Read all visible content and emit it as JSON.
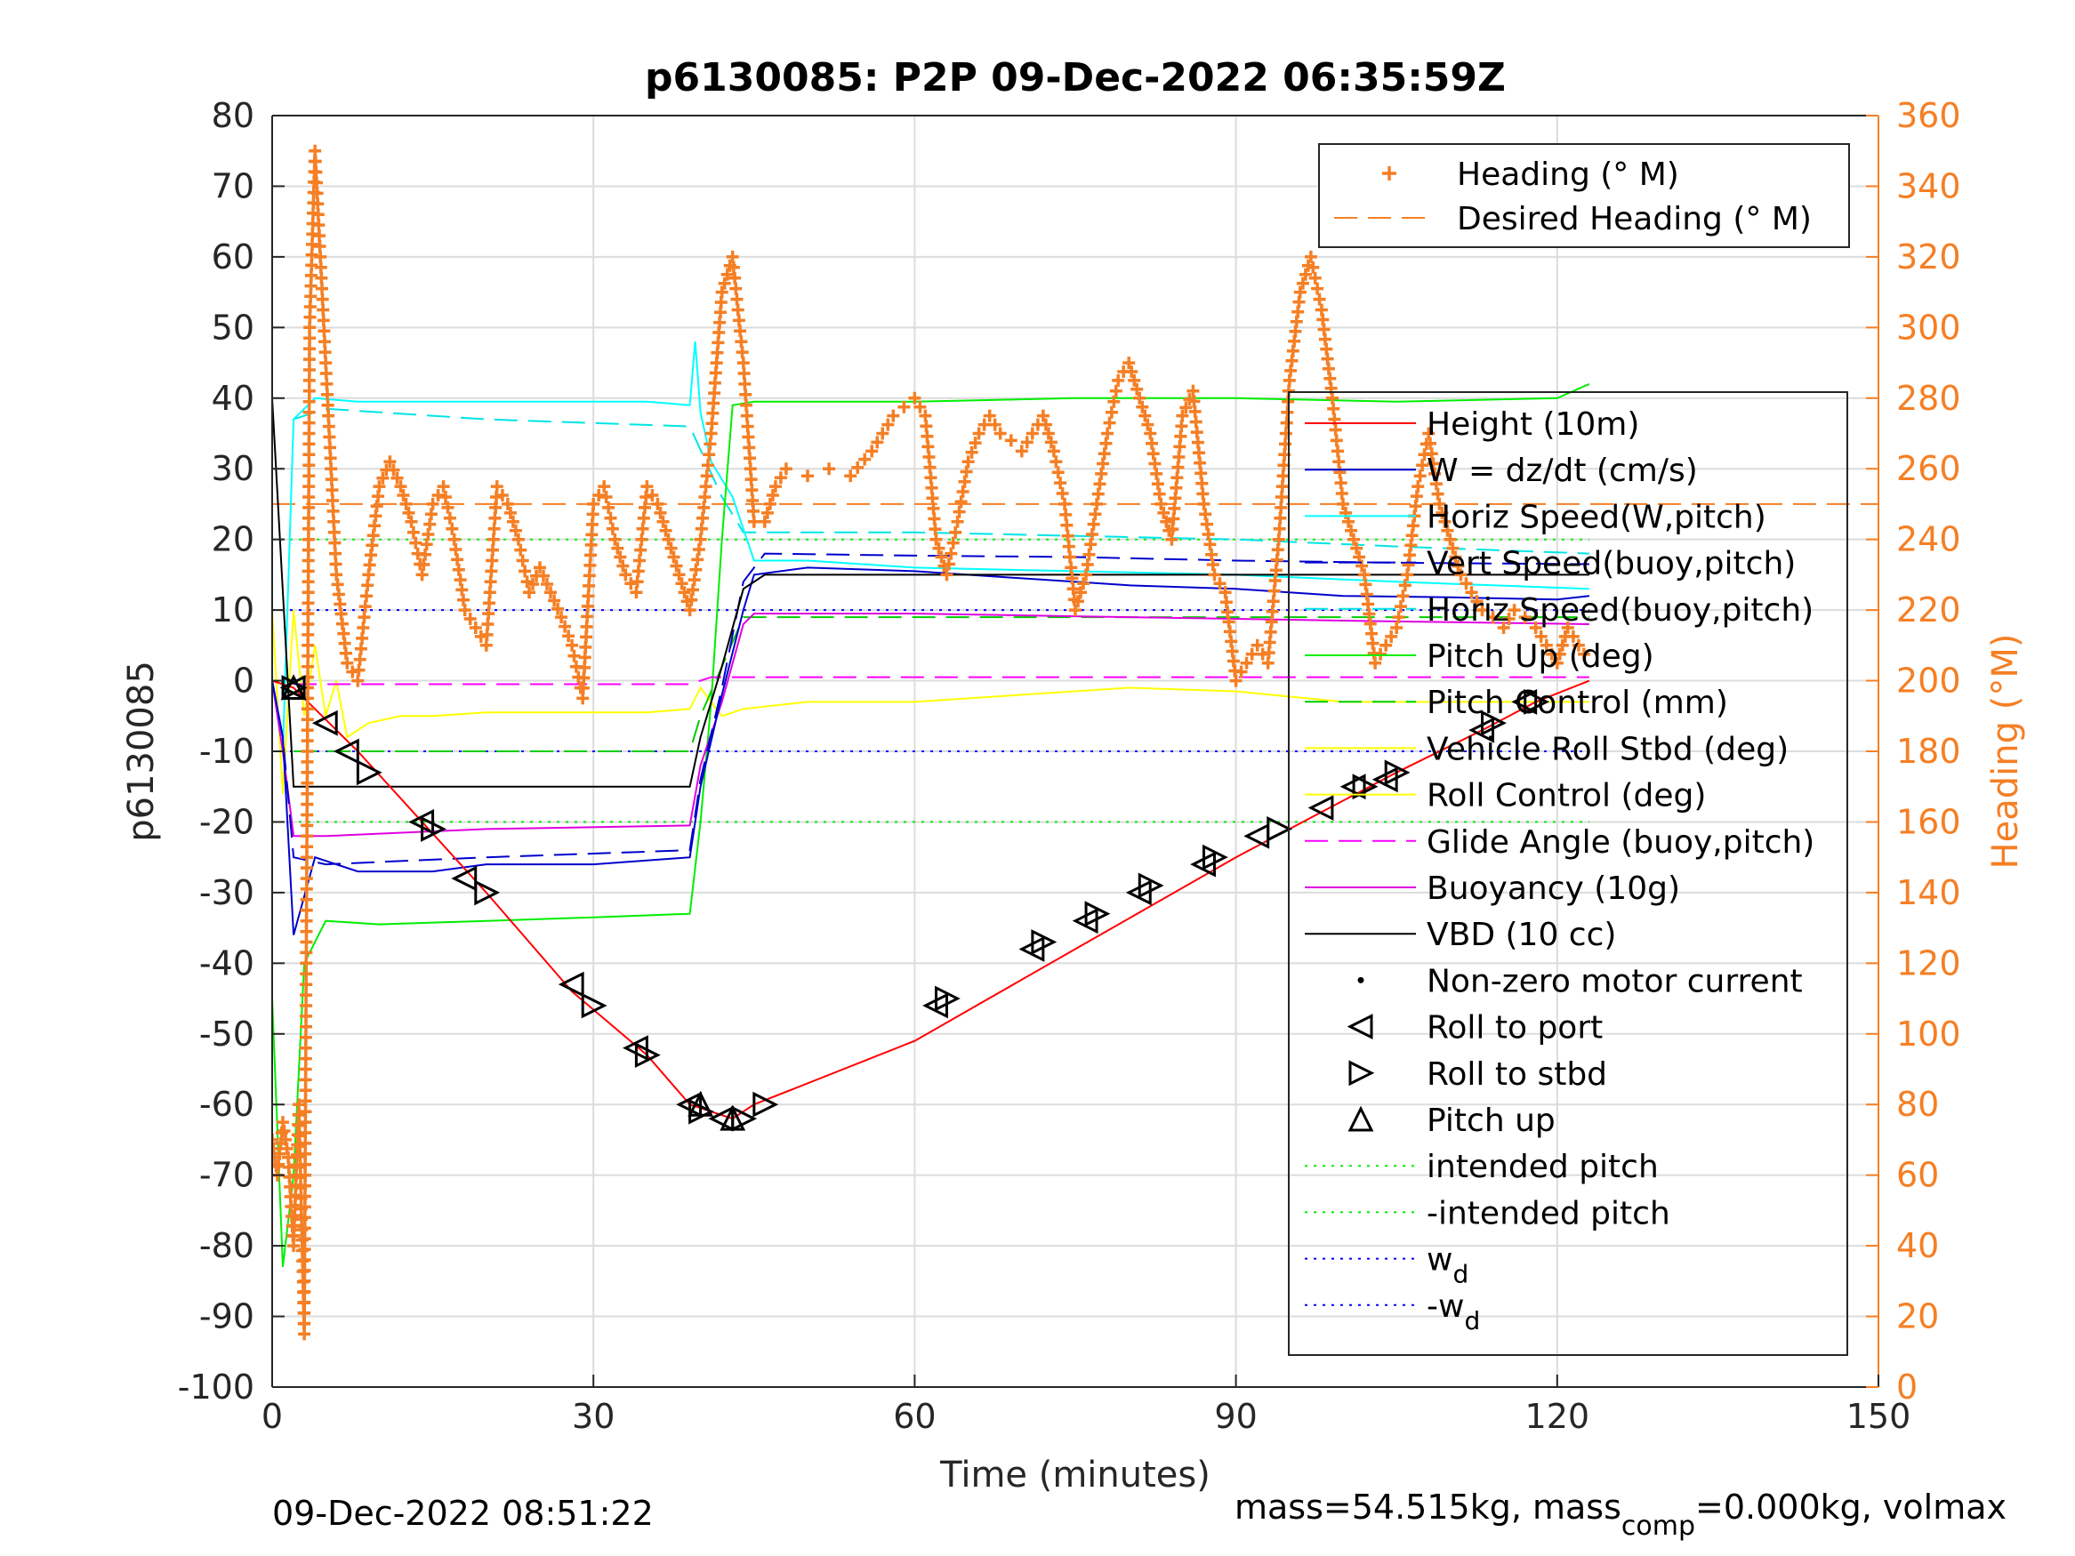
{
  "chart_data": {
    "type": "line",
    "title": "p6130085: P2P 09-Dec-2022 06:35:59Z",
    "xlabel": "Time (minutes)",
    "ylabel": "p6130085",
    "y2label": "Heading (°M)",
    "xlim": [
      0,
      150
    ],
    "ylim": [
      -100,
      80
    ],
    "y2lim": [
      0,
      360
    ],
    "xticks": [
      "0",
      "30",
      "60",
      "90",
      "120",
      "150"
    ],
    "yticks": [
      "80",
      "70",
      "60",
      "50",
      "40",
      "30",
      "20",
      "10",
      "0",
      "-10",
      "-20",
      "-30",
      "-40",
      "-50",
      "-60",
      "-70",
      "-80",
      "-90",
      "-100"
    ],
    "y2ticks": [
      "360",
      "340",
      "320",
      "300",
      "280",
      "260",
      "240",
      "220",
      "200",
      "180",
      "160",
      "140",
      "120",
      "100",
      "80",
      "60",
      "40",
      "20",
      "0"
    ],
    "grid": true,
    "colors": {
      "height": "#ff0000",
      "w": "#0000cd",
      "horiz_w": "#00ffff",
      "vert_buoy": "#0000cd",
      "horiz_buoy": "#00e5e5",
      "pitch_up": "#00ee00",
      "pitch_control": "#00cc00",
      "roll": "#ffff00",
      "glide": "#ff00ff",
      "buoyancy": "#e000e0",
      "vbd": "#000000",
      "heading": "#f57f24",
      "intended": "#00ee00",
      "wd": "#0000ff"
    },
    "legend_top": {
      "placement": "top-right",
      "entries": [
        "Heading (° M)",
        "Desired Heading (° M)"
      ]
    },
    "legend_main": {
      "placement": "right",
      "entries": [
        "Height (10m)",
        "W = dz/dt (cm/s)",
        "Horiz Speed(W,pitch)",
        "Vert Speed(buoy,pitch)",
        "Horiz Speed(buoy,pitch)",
        "Pitch Up (deg)",
        "Pitch Control (mm)",
        "Vehicle Roll Stbd (deg)",
        "Roll Control (deg)",
        "Glide Angle (buoy,pitch)",
        "Buoyancy (10g)",
        "VBD (10 cc)",
        "Non-zero motor current",
        "Roll to port",
        "Roll to stbd",
        "Pitch up",
        "intended pitch",
        "-intended pitch",
        "w",
        "-w"
      ],
      "wd_subscript": "d"
    },
    "series": [
      {
        "name": "Height (10m)",
        "x": [
          0,
          2,
          8,
          14,
          20,
          28,
          35,
          39,
          41,
          43,
          45,
          60,
          75,
          90,
          105,
          113,
          118,
          123
        ],
        "y": [
          0,
          -1,
          -10,
          -20,
          -30,
          -44,
          -53,
          -60,
          -61,
          -62,
          -60,
          -51,
          -38,
          -25,
          -13,
          -7,
          -3,
          0
        ]
      },
      {
        "name": "W = dz/dt (cm/s)",
        "x": [
          0,
          1,
          2,
          4,
          8,
          15,
          20,
          30,
          39,
          40,
          42,
          44,
          45,
          50,
          60,
          70,
          80,
          90,
          100,
          110,
          120,
          123
        ],
        "y": [
          0,
          -8,
          -36,
          -25,
          -27,
          -27,
          -26,
          -26,
          -25,
          -15,
          -2,
          10,
          15,
          16,
          15.5,
          14.5,
          13.5,
          13,
          12,
          11.8,
          11.5,
          12
        ]
      },
      {
        "name": "Horiz Speed(W,pitch)",
        "x": [
          0,
          1,
          2,
          4,
          8,
          15,
          25,
          35,
          39,
          39.5,
          40,
          41,
          43,
          45,
          50,
          60,
          75,
          90,
          105,
          123
        ],
        "y": [
          0,
          -10,
          37,
          40,
          39.5,
          39.5,
          39.5,
          39.5,
          39,
          48,
          38,
          31,
          26,
          17,
          17,
          16,
          15.5,
          15,
          14,
          13
        ]
      },
      {
        "name": "Vert Speed(buoy,pitch)",
        "x": [
          0,
          1,
          2,
          5,
          20,
          39,
          40,
          42,
          44,
          46,
          60,
          75,
          90,
          105,
          123
        ],
        "y": [
          0,
          -8,
          -25,
          -26,
          -25,
          -24,
          -14,
          -1,
          14,
          18,
          17.7,
          17.5,
          17,
          16.7,
          16.5
        ]
      },
      {
        "name": "Horiz Speed(buoy,pitch)",
        "x": [
          2,
          5,
          20,
          39,
          42,
          44,
          60,
          75,
          90,
          105,
          123
        ],
        "y": [
          37,
          38.5,
          37,
          36,
          26,
          21,
          21,
          20.5,
          20,
          19,
          18
        ]
      },
      {
        "name": "Pitch Up (deg)",
        "x": [
          0,
          1,
          2,
          3,
          5,
          10,
          20,
          30,
          39,
          40,
          41,
          42,
          43,
          45,
          60,
          75,
          90,
          105,
          120,
          123
        ],
        "y": [
          -45,
          -83,
          -70,
          -40,
          -34,
          -34.5,
          -34,
          -33.5,
          -33,
          -20,
          -3,
          20,
          39,
          39.5,
          39.5,
          40,
          40,
          39.5,
          40,
          42
        ]
      },
      {
        "name": "Pitch Control (mm)",
        "x": [
          2,
          39,
          40,
          42,
          44,
          123
        ],
        "y": [
          -10,
          -10,
          -5,
          2,
          9,
          9
        ]
      },
      {
        "name": "Vehicle Roll Stbd (deg)",
        "x": [
          0,
          1,
          2,
          3,
          4,
          5,
          6,
          7,
          9,
          12,
          15,
          20,
          25,
          30,
          35,
          39,
          40,
          42,
          44,
          50,
          60,
          70,
          80,
          90,
          100,
          110,
          120,
          123
        ],
        "y": [
          10,
          -16,
          10,
          -5,
          5,
          -5,
          0,
          -8,
          -6,
          -5,
          -5,
          -4.5,
          -4.5,
          -4.5,
          -4.5,
          -4,
          -1,
          -5,
          -4,
          -3,
          -3,
          -2,
          -1,
          -1.5,
          -3,
          -3,
          -3,
          -3
        ]
      },
      {
        "name": "Glide Angle (buoy,pitch)",
        "x": [
          2,
          39,
          41,
          43,
          123
        ],
        "y": [
          -0.5,
          -0.5,
          0.5,
          0.5,
          0.5
        ]
      },
      {
        "name": "Buoyancy (10g)",
        "x": [
          0,
          1,
          2,
          5,
          20,
          39,
          40,
          42,
          44,
          45,
          60,
          80,
          100,
          123
        ],
        "y": [
          0,
          -10,
          -22,
          -22,
          -21,
          -20.5,
          -12,
          -3,
          8,
          9.5,
          9.5,
          9,
          8.5,
          8
        ]
      },
      {
        "name": "VBD (10 cc)",
        "x": [
          0,
          2,
          39,
          40,
          42,
          44,
          46,
          123
        ],
        "y": [
          40,
          -15,
          -15,
          -8,
          2,
          13,
          15,
          15
        ]
      },
      {
        "name": "Heading (° M)",
        "axis": "right",
        "x": [
          0,
          0.5,
          1,
          1.5,
          2,
          2.5,
          3,
          3.5,
          4,
          5,
          6,
          7,
          8,
          9,
          10,
          11,
          12,
          13,
          14,
          15,
          16,
          17,
          18,
          19,
          20,
          21,
          22,
          23,
          24,
          25,
          26,
          27,
          28,
          29,
          30,
          31,
          32,
          33,
          34,
          35,
          36,
          37,
          38,
          39,
          40,
          41,
          42,
          43,
          44,
          45,
          46,
          47,
          48,
          50,
          52,
          54,
          56,
          58,
          60,
          61,
          62,
          63,
          64,
          65,
          66,
          67,
          68,
          69,
          70,
          71,
          72,
          73,
          74,
          75,
          76,
          77,
          78,
          79,
          80,
          81,
          82,
          83,
          84,
          85,
          86,
          87,
          88,
          89,
          90,
          91,
          92,
          93,
          94,
          95,
          96,
          97,
          98,
          99,
          100,
          101,
          102,
          103,
          104,
          105,
          106,
          107,
          108,
          109,
          110,
          111,
          112,
          113,
          114,
          115,
          116,
          117,
          118,
          119,
          120,
          121,
          122,
          123
        ],
        "y": [
          70,
          60,
          75,
          65,
          40,
          80,
          15,
          300,
          350,
          290,
          230,
          205,
          200,
          230,
          255,
          262,
          255,
          245,
          230,
          250,
          255,
          240,
          220,
          215,
          210,
          255,
          250,
          240,
          225,
          232,
          225,
          218,
          210,
          195,
          250,
          255,
          240,
          230,
          225,
          255,
          250,
          240,
          230,
          220,
          240,
          270,
          310,
          320,
          290,
          245,
          245,
          255,
          260,
          258,
          260,
          258,
          265,
          275,
          280,
          275,
          240,
          230,
          245,
          262,
          270,
          275,
          270,
          268,
          265,
          270,
          275,
          265,
          250,
          220,
          230,
          250,
          270,
          285,
          290,
          280,
          270,
          250,
          240,
          275,
          282,
          250,
          230,
          225,
          200,
          205,
          210,
          205,
          240,
          285,
          310,
          320,
          305,
          280,
          250,
          240,
          230,
          205,
          210,
          215,
          230,
          255,
          270,
          250,
          240,
          230,
          225,
          220,
          218,
          215,
          220,
          218,
          215,
          210,
          205,
          215,
          210,
          205
        ]
      },
      {
        "name": "Desired Heading (° M)",
        "axis": "right",
        "x": [
          0,
          150
        ],
        "y": [
          250,
          250
        ]
      },
      {
        "name": "intended pitch",
        "x": [
          0,
          123
        ],
        "y": [
          20,
          20
        ]
      },
      {
        "name": "-intended pitch",
        "x": [
          0,
          123
        ],
        "y": [
          -20,
          -20
        ]
      },
      {
        "name": "w_d",
        "x": [
          0,
          123
        ],
        "y": [
          10,
          10
        ]
      },
      {
        "name": "-w_d",
        "x": [
          0,
          123
        ],
        "y": [
          -10,
          -10
        ]
      }
    ],
    "markers": {
      "roll_to_port": [
        [
          2,
          -1
        ],
        [
          5,
          -6
        ],
        [
          7,
          -10
        ],
        [
          14,
          -20
        ],
        [
          18,
          -28
        ],
        [
          28,
          -43
        ],
        [
          34,
          -52
        ],
        [
          39,
          -60
        ],
        [
          42,
          -62
        ],
        [
          62,
          -46
        ],
        [
          71,
          -38
        ],
        [
          76,
          -34
        ],
        [
          81,
          -30
        ],
        [
          87,
          -26
        ],
        [
          92,
          -22
        ],
        [
          98,
          -18
        ],
        [
          101,
          -15
        ],
        [
          104,
          -14
        ],
        [
          113,
          -7
        ],
        [
          117,
          -3
        ]
      ],
      "roll_to_stbd": [
        [
          2,
          -1
        ],
        [
          9,
          -13
        ],
        [
          15,
          -21
        ],
        [
          20,
          -30
        ],
        [
          30,
          -46
        ],
        [
          35,
          -53
        ],
        [
          40,
          -61
        ],
        [
          44,
          -62
        ],
        [
          46,
          -60
        ],
        [
          63,
          -45
        ],
        [
          72,
          -37
        ],
        [
          77,
          -33
        ],
        [
          82,
          -29
        ],
        [
          88,
          -25
        ],
        [
          94,
          -21
        ],
        [
          102,
          -15
        ],
        [
          105,
          -13
        ],
        [
          114,
          -6
        ],
        [
          118,
          -3
        ]
      ],
      "pitch_up": [
        [
          2,
          -1
        ],
        [
          40,
          -60
        ],
        [
          43,
          -62
        ]
      ]
    },
    "footer_left": "09-Dec-2022 08:51:22",
    "footer_right_1": "mass=54.515kg, mass",
    "footer_sub": "comp",
    "footer_right_2": "=0.000kg, volmax"
  }
}
